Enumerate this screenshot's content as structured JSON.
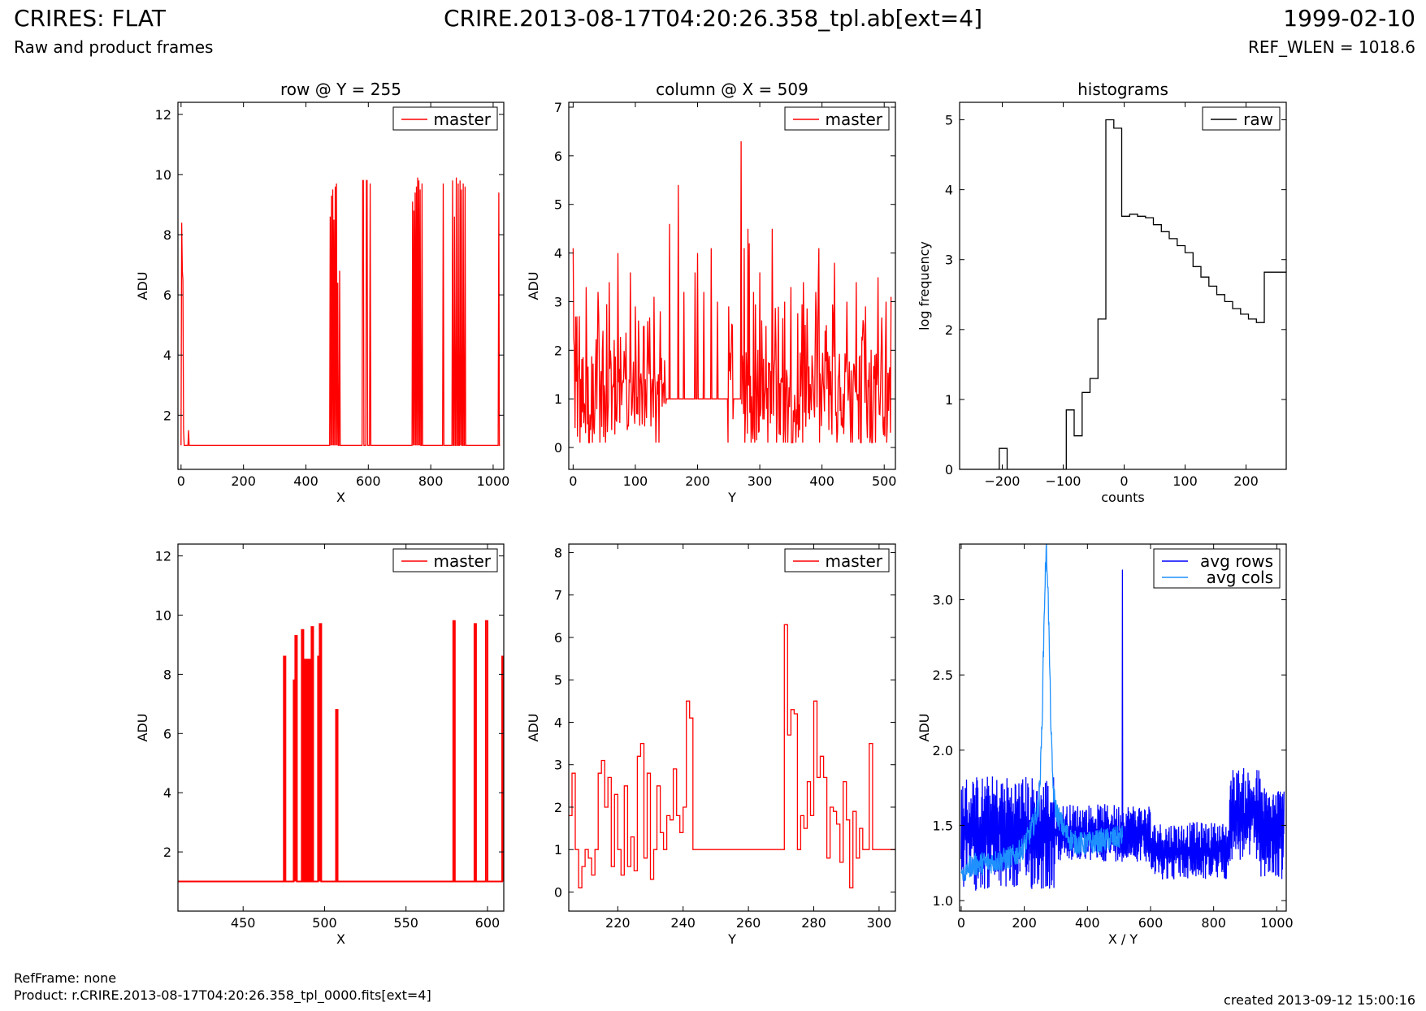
{
  "header": {
    "title": "CRIRES: FLAT",
    "subtitle": "Raw and product frames",
    "filename": "CRIRE.2013-08-17T04:20:26.358_tpl.ab[ext=4]",
    "date": "1999-02-10",
    "ref_wlen": "REF_WLEN = 1018.6"
  },
  "footer": {
    "ref_frame": "RefFrame: none",
    "product": "Product: r.CRIRE.2013-08-17T04:20:26.358_tpl_0000.fits[ext=4]",
    "created": "created 2013-09-12 15:00:16"
  },
  "colors": {
    "master": "#ff0000",
    "raw": "#000000",
    "avg_rows": "#0000ff",
    "avg_cols": "#1e90ff"
  },
  "chart_data": [
    {
      "type": "line",
      "title": "row @ Y = 255",
      "xlabel": "X",
      "ylabel": "ADU",
      "xlim": [
        -10,
        1034
      ],
      "ylim": [
        0.2,
        12.4
      ],
      "xticks": [
        0,
        200,
        400,
        600,
        800,
        1000
      ],
      "yticks": [
        2,
        4,
        6,
        8,
        10,
        12
      ],
      "legend": "top-right",
      "step": false,
      "series": [
        {
          "name": "master",
          "color": "#ff0000",
          "baseline": 1.0,
          "spikes": [
            [
              2,
              8.4
            ],
            [
              4,
              6.8
            ],
            [
              6,
              6.5
            ],
            [
              8,
              1.5
            ],
            [
              24,
              1.5
            ],
            [
              478,
              8.6
            ],
            [
              482,
              9.3
            ],
            [
              486,
              9.5
            ],
            [
              490,
              8.5
            ],
            [
              494,
              9.6
            ],
            [
              498,
              9.7
            ],
            [
              502,
              6.4
            ],
            [
              508,
              6.8
            ],
            [
              583,
              9.8
            ],
            [
              595,
              9.8
            ],
            [
              606,
              9.7
            ],
            [
              742,
              9.1
            ],
            [
              746,
              8.8
            ],
            [
              750,
              9.4
            ],
            [
              754,
              9.6
            ],
            [
              758,
              9.9
            ],
            [
              762,
              9.8
            ],
            [
              766,
              9.5
            ],
            [
              772,
              9.7
            ],
            [
              840,
              9.7
            ],
            [
              870,
              9.8
            ],
            [
              876,
              8.6
            ],
            [
              882,
              9.9
            ],
            [
              888,
              9.7
            ],
            [
              894,
              9.8
            ],
            [
              898,
              9.5
            ],
            [
              904,
              9.7
            ],
            [
              910,
              9.6
            ],
            [
              1018,
              9.4
            ]
          ]
        }
      ]
    },
    {
      "type": "line",
      "title": "column @ X = 509",
      "xlabel": "Y",
      "ylabel": "ADU",
      "xlim": [
        -7,
        518
      ],
      "ylim": [
        -0.45,
        7.1
      ],
      "xticks": [
        0,
        100,
        200,
        300,
        400,
        500
      ],
      "yticks": [
        0,
        1,
        2,
        3,
        4,
        5,
        6,
        7
      ],
      "legend": "top-right",
      "step": false,
      "series": [
        {
          "name": "master",
          "color": "#ff0000",
          "flat": [
            [
              150,
              248
            ],
            [
              258,
              270
            ]
          ],
          "peaks": [
            [
              0,
              4.1
            ],
            [
              3,
              0.4
            ],
            [
              10,
              2.7
            ],
            [
              21,
              3.3
            ],
            [
              40,
              3.2
            ],
            [
              48,
              2.4
            ],
            [
              58,
              3.4
            ],
            [
              72,
              4.0
            ],
            [
              84,
              1.4
            ],
            [
              92,
              3.6
            ],
            [
              100,
              2.9
            ],
            [
              120,
              2.6
            ],
            [
              130,
              3.1
            ],
            [
              140,
              2.8
            ],
            [
              155,
              4.6
            ],
            [
              169,
              5.4
            ],
            [
              178,
              3.2
            ],
            [
              196,
              3.6
            ],
            [
              200,
              4.0
            ],
            [
              210,
              3.2
            ],
            [
              222,
              4.1
            ],
            [
              232,
              3.0
            ],
            [
              250,
              2.9
            ],
            [
              256,
              2.5
            ],
            [
              270,
              6.3
            ],
            [
              275,
              4.1
            ],
            [
              281,
              4.5
            ],
            [
              283,
              4.2
            ],
            [
              290,
              3.2
            ],
            [
              300,
              3.6
            ],
            [
              310,
              2.5
            ],
            [
              320,
              4.5
            ],
            [
              340,
              3.0
            ],
            [
              350,
              3.3
            ],
            [
              370,
              3.4
            ],
            [
              390,
              3.2
            ],
            [
              395,
              4.1
            ],
            [
              405,
              2.4
            ],
            [
              420,
              3.8
            ],
            [
              440,
              3.0
            ],
            [
              455,
              3.4
            ],
            [
              470,
              2.9
            ],
            [
              490,
              3.5
            ],
            [
              503,
              3.0
            ],
            [
              511,
              3.1
            ]
          ]
        }
      ]
    },
    {
      "type": "step",
      "title": "histograms",
      "xlabel": "counts",
      "ylabel": "log frequency",
      "xlim": [
        -270,
        266
      ],
      "ylim": [
        0,
        5.25
      ],
      "xticks": [
        -200,
        -100,
        0,
        100,
        200
      ],
      "yticks": [
        0,
        1,
        2,
        3,
        4,
        5
      ],
      "legend": "top-right",
      "series": [
        {
          "name": "raw",
          "color": "#000000",
          "edges": [
            -270,
            -205,
            -192,
            -95,
            -82,
            -69,
            -56,
            -43,
            -30,
            -17,
            -4,
            9,
            22,
            35,
            48,
            61,
            74,
            87,
            100,
            113,
            126,
            139,
            152,
            165,
            178,
            191,
            204,
            217,
            230,
            245,
            266
          ],
          "values": [
            0,
            0.3,
            0,
            0.85,
            0.48,
            1.1,
            1.3,
            2.15,
            5.0,
            4.88,
            3.62,
            3.65,
            3.62,
            3.6,
            3.5,
            3.4,
            3.3,
            3.2,
            3.1,
            2.9,
            2.75,
            2.62,
            2.5,
            2.4,
            2.3,
            2.22,
            2.15,
            2.1,
            2.82,
            2.82
          ]
        }
      ]
    },
    {
      "type": "line",
      "title": "",
      "xlabel": "X",
      "ylabel": "ADU",
      "xlim": [
        410,
        610
      ],
      "ylim": [
        0.0,
        12.4
      ],
      "xticks": [
        450,
        500,
        550,
        600
      ],
      "yticks": [
        2,
        4,
        6,
        8,
        10,
        12
      ],
      "legend": "top-right",
      "step": true,
      "series": [
        {
          "name": "master",
          "color": "#ff0000",
          "baseline": 1.0,
          "spikes": [
            [
              475,
              8.6
            ],
            [
              481,
              7.8
            ],
            [
              482,
              9.3
            ],
            [
              485,
              1.0
            ],
            [
              486,
              9.5
            ],
            [
              488,
              8.5
            ],
            [
              490,
              8.5
            ],
            [
              492,
              9.6
            ],
            [
              496,
              8.6
            ],
            [
              497,
              9.7
            ],
            [
              507,
              6.8
            ],
            [
              579,
              9.8
            ],
            [
              592,
              9.7
            ],
            [
              599,
              9.8
            ],
            [
              609,
              8.6
            ]
          ]
        }
      ]
    },
    {
      "type": "step",
      "title": "",
      "xlabel": "Y",
      "ylabel": "ADU",
      "xlim": [
        205,
        305
      ],
      "ylim": [
        -0.45,
        8.2
      ],
      "xticks": [
        220,
        240,
        260,
        280,
        300
      ],
      "yticks": [
        0,
        1,
        2,
        3,
        4,
        5,
        6,
        7,
        8
      ],
      "legend": "top-right",
      "series": [
        {
          "name": "master",
          "color": "#ff0000",
          "x": [
            205,
            206,
            207,
            208,
            209,
            210,
            211,
            212,
            213,
            214,
            215,
            216,
            217,
            218,
            219,
            220,
            221,
            222,
            223,
            224,
            225,
            226,
            227,
            228,
            229,
            230,
            231,
            232,
            233,
            234,
            235,
            236,
            237,
            238,
            239,
            240,
            241,
            242,
            243,
            271,
            272,
            273,
            274,
            275,
            276,
            277,
            278,
            279,
            280,
            281,
            282,
            283,
            284,
            285,
            286,
            287,
            288,
            289,
            290,
            291,
            292,
            293,
            294,
            295,
            296,
            297,
            298,
            299,
            300,
            301,
            302,
            303,
            304
          ],
          "values": [
            1.8,
            2.8,
            1.0,
            0.1,
            0.6,
            1.0,
            0.8,
            0.4,
            1.0,
            2.8,
            3.1,
            2.0,
            2.7,
            0.6,
            2.3,
            1.0,
            0.4,
            2.5,
            0.6,
            1.3,
            0.5,
            3.2,
            3.5,
            0.8,
            2.8,
            0.3,
            1.0,
            2.5,
            1.4,
            1.0,
            1.8,
            1.7,
            2.9,
            1.8,
            1.4,
            2.0,
            4.5,
            4.1,
            1.0,
            6.3,
            3.7,
            4.3,
            4.2,
            1.0,
            1.8,
            1.5,
            2.6,
            1.8,
            4.5,
            2.7,
            3.2,
            2.7,
            0.8,
            2.0,
            1.9,
            1.6,
            0.7,
            2.6,
            1.7,
            0.1,
            1.9,
            0.8,
            1.5,
            1.0,
            1.0,
            3.5,
            1.0,
            1.0,
            1.0,
            1.0,
            1.0,
            1.0,
            1.0
          ]
        }
      ]
    },
    {
      "type": "line",
      "title": "",
      "xlabel": "X / Y",
      "ylabel": "ADU",
      "xlim": [
        -5,
        1030
      ],
      "ylim": [
        0.93,
        3.37
      ],
      "xticks": [
        0,
        200,
        400,
        600,
        800,
        1000
      ],
      "yticks": [
        1.0,
        1.5,
        2.0,
        2.5,
        3.0
      ],
      "legend": "top-right",
      "series": [
        {
          "name": "avg rows",
          "color": "#0000ff",
          "n": 1024,
          "base": 1.45,
          "amplitude": 0.35,
          "spike": [
            511,
            3.2
          ]
        },
        {
          "name": "avg cols",
          "color": "#1e90ff",
          "n": 512,
          "base": 1.22,
          "amplitude": 0.1,
          "peak": [
            270,
            3.4
          ]
        }
      ]
    }
  ]
}
